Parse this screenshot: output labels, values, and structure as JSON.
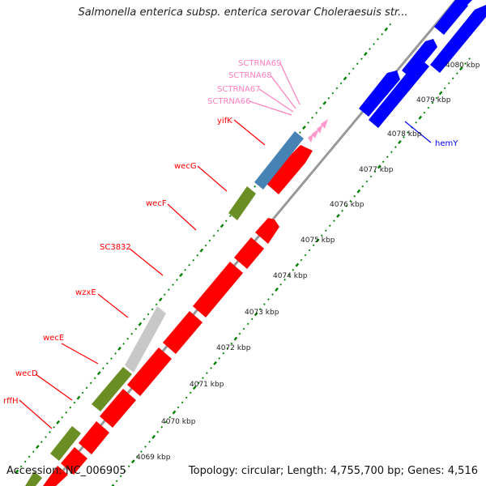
{
  "title": "Salmonella enterica subsp. enterica serovar Choleraesuis str...",
  "footer": {
    "accession": "Accession: NC_006905",
    "summary": "Topology: circular; Length: 4,755,700 bp; Genes: 4,516"
  },
  "colors": {
    "forward_gene": "#ff0000",
    "backbone": "#999999",
    "green_gene": "#6a8e23",
    "grey_gene": "#c8c8c8",
    "blue_gene": "#4682b4",
    "reverse_gene": "#0000ff",
    "trna": "#ff99cc",
    "tick": "#008000",
    "label_red": "#ff0000",
    "label_pink": "#ff80c0",
    "label_blue": "#0000ff"
  },
  "scale_labels": [
    "4069 kbp",
    "4070 kbp",
    "4071 kbp",
    "4072 kbp",
    "4073 kbp",
    "4074 kbp",
    "4075 kbp",
    "4076 kbp",
    "4077 kbp",
    "4078 kbp",
    "4079 kbp",
    "4080 kbp"
  ],
  "gene_labels": {
    "rffH": "rffH",
    "wecD": "wecD",
    "wecE": "wecE",
    "wzxE": "wzxE",
    "SC3832": "SC3832",
    "wecF": "wecF",
    "wecG": "wecG",
    "yifK": "yifK",
    "SCTRNA66": "SCTRNA66",
    "SCTRNA67": "SCTRNA67",
    "SCTRNA68": "SCTRNA68",
    "SCTRNA69": "SCTRNA69",
    "hemY": "hemY"
  }
}
